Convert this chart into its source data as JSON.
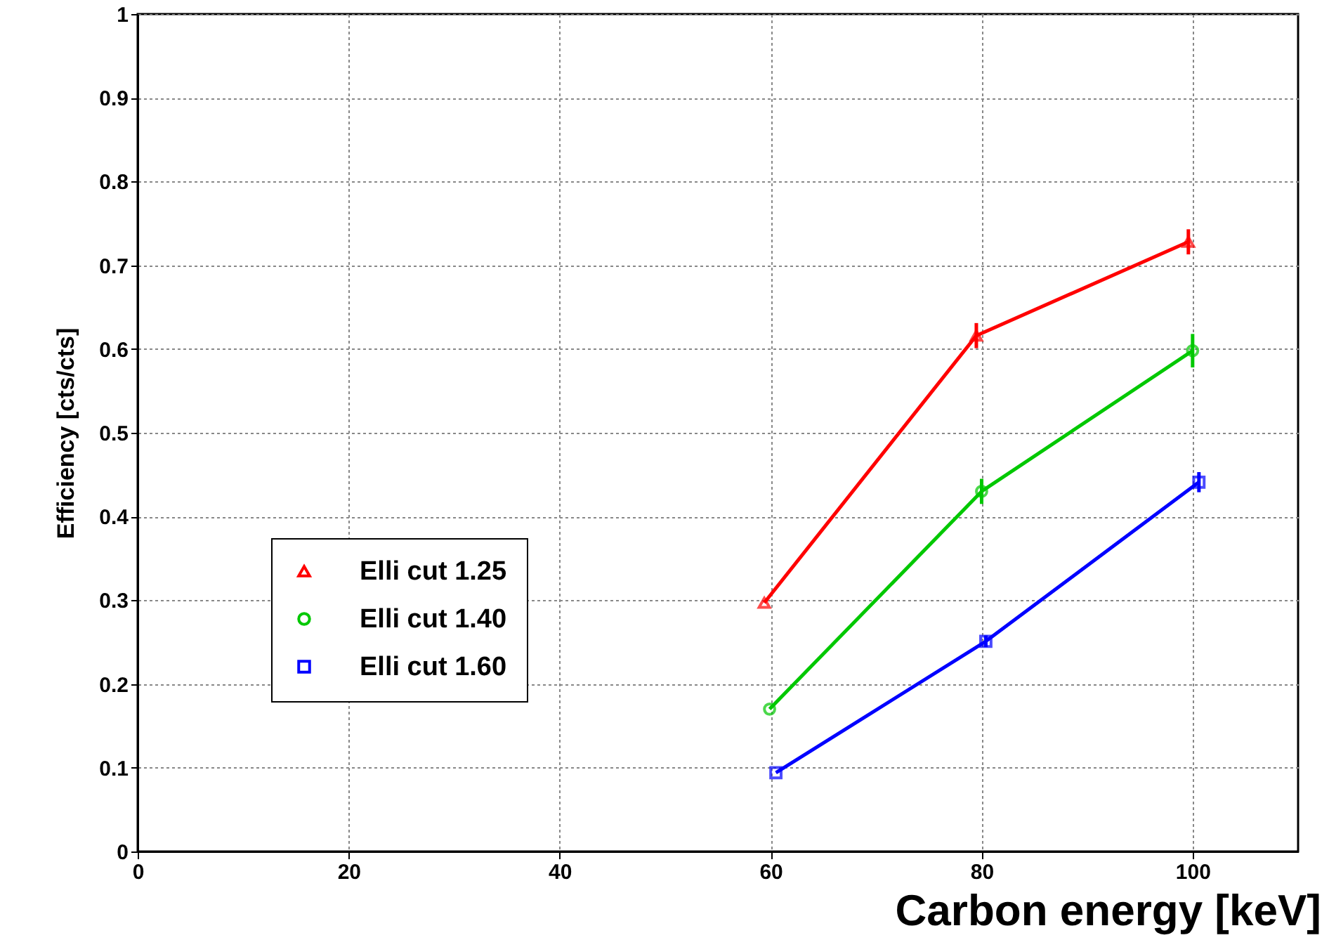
{
  "chart_data": {
    "type": "line",
    "xlabel": "Carbon energy [keV]",
    "ylabel": "Efficiency [cts/cts]",
    "xlim": [
      0,
      110
    ],
    "xticks": [
      0,
      20,
      40,
      60,
      80,
      100
    ],
    "ylim": [
      0,
      1
    ],
    "yticks": [
      0,
      0.1,
      0.2,
      0.3,
      0.4,
      0.5,
      0.6,
      0.7,
      0.8,
      0.9,
      1
    ],
    "grid": true,
    "legend": "bottom left",
    "line_style": "solid",
    "series": [
      {
        "name": "Elli cut 1.25",
        "color": "#ff0000",
        "marker": "triangle",
        "x": [
          59.4,
          79.5,
          99.6
        ],
        "values": [
          0.297,
          0.616,
          0.728
        ],
        "errors": [
          null,
          0.015,
          0.015
        ]
      },
      {
        "name": "Elli cut 1.40",
        "color": "#00c800",
        "marker": "circle",
        "x": [
          59.9,
          80,
          100
        ],
        "values": [
          0.17,
          0.43,
          0.598
        ],
        "errors": [
          null,
          0.015,
          0.02
        ]
      },
      {
        "name": "Elli cut 1.60",
        "color": "#0000ff",
        "marker": "square",
        "x": [
          60.5,
          80.4,
          100.6
        ],
        "values": [
          0.094,
          0.251,
          0.441
        ],
        "errors": [
          null,
          0.007,
          0.012
        ]
      }
    ]
  }
}
